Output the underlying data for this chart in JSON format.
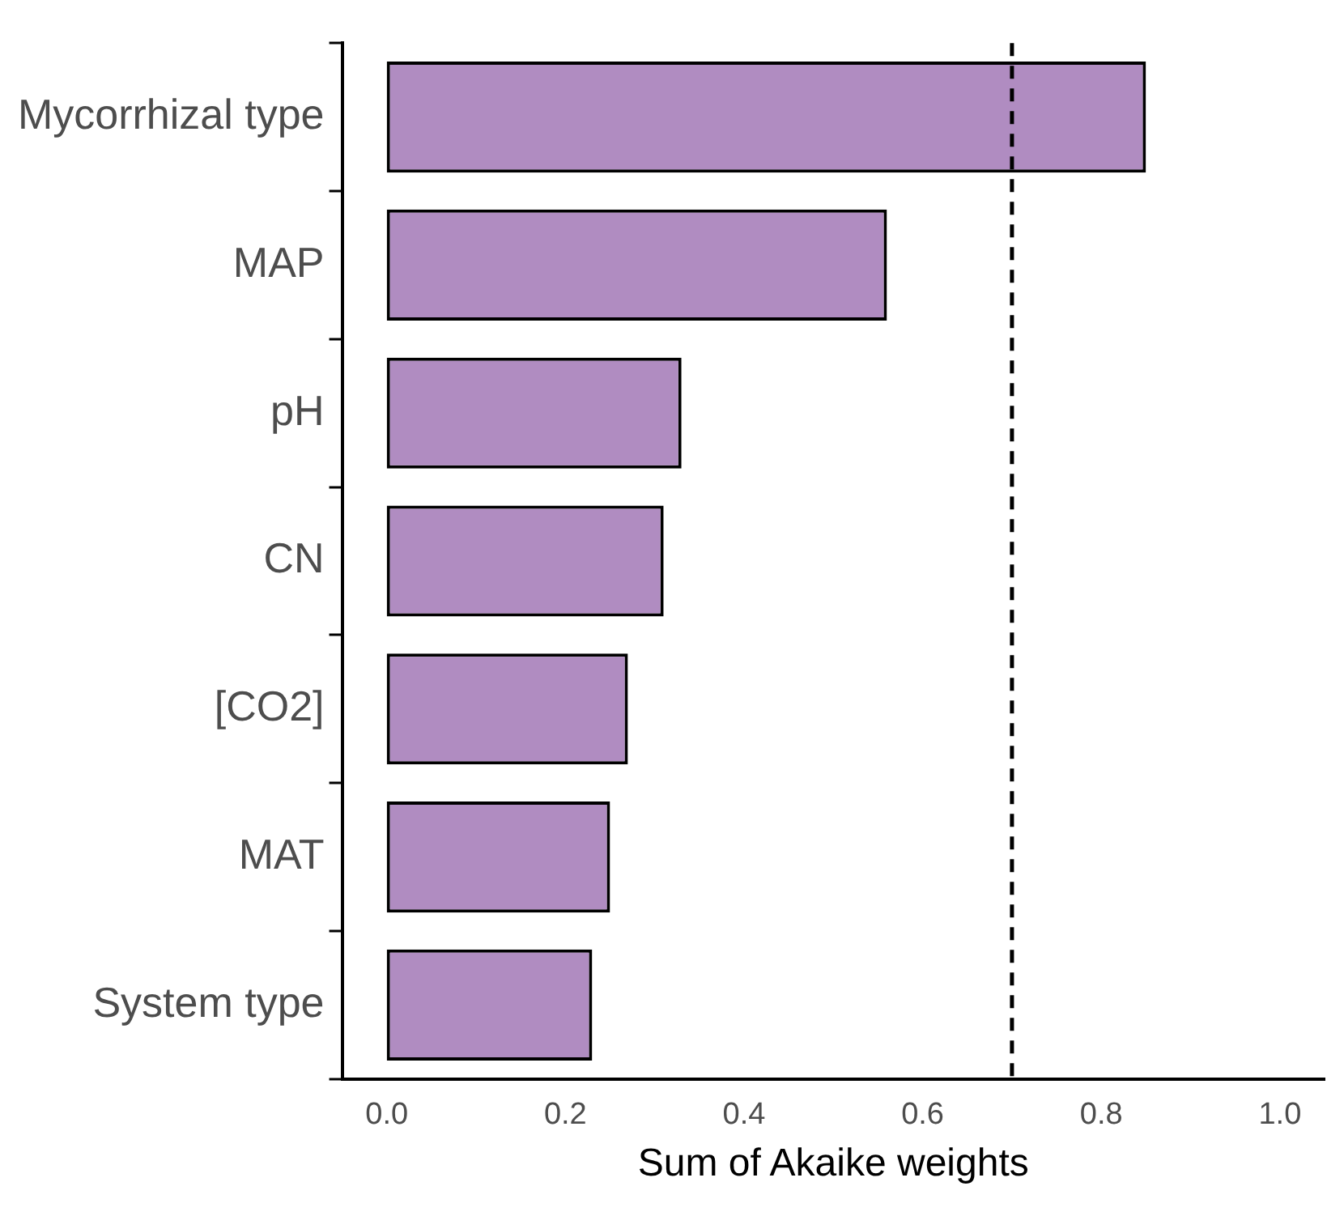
{
  "chart_data": {
    "type": "bar",
    "orientation": "horizontal",
    "xlabel": "Sum of Akaike weights",
    "categories": [
      "Mycorrhizal type",
      "MAP",
      "pH",
      "CN",
      "[CO2]",
      "MAT",
      "System type"
    ],
    "values": [
      0.85,
      0.56,
      0.33,
      0.31,
      0.27,
      0.25,
      0.23
    ],
    "color": "#b08cc1",
    "xlim": [
      -0.05,
      1.05
    ],
    "xticks": [
      {
        "value": 0,
        "label": "0.0"
      },
      {
        "value": 0.2,
        "label": "0.2"
      },
      {
        "value": 0.4,
        "label": "0.4"
      },
      {
        "value": 0.6,
        "label": "0.6"
      },
      {
        "value": 0.8,
        "label": "0.8"
      },
      {
        "value": 1,
        "label": "1.0"
      }
    ],
    "ref_lines": [
      {
        "axis": "x",
        "value": 0.7,
        "line_style": "dashed",
        "color": "#000000"
      }
    ],
    "grid": false,
    "legend": false
  }
}
